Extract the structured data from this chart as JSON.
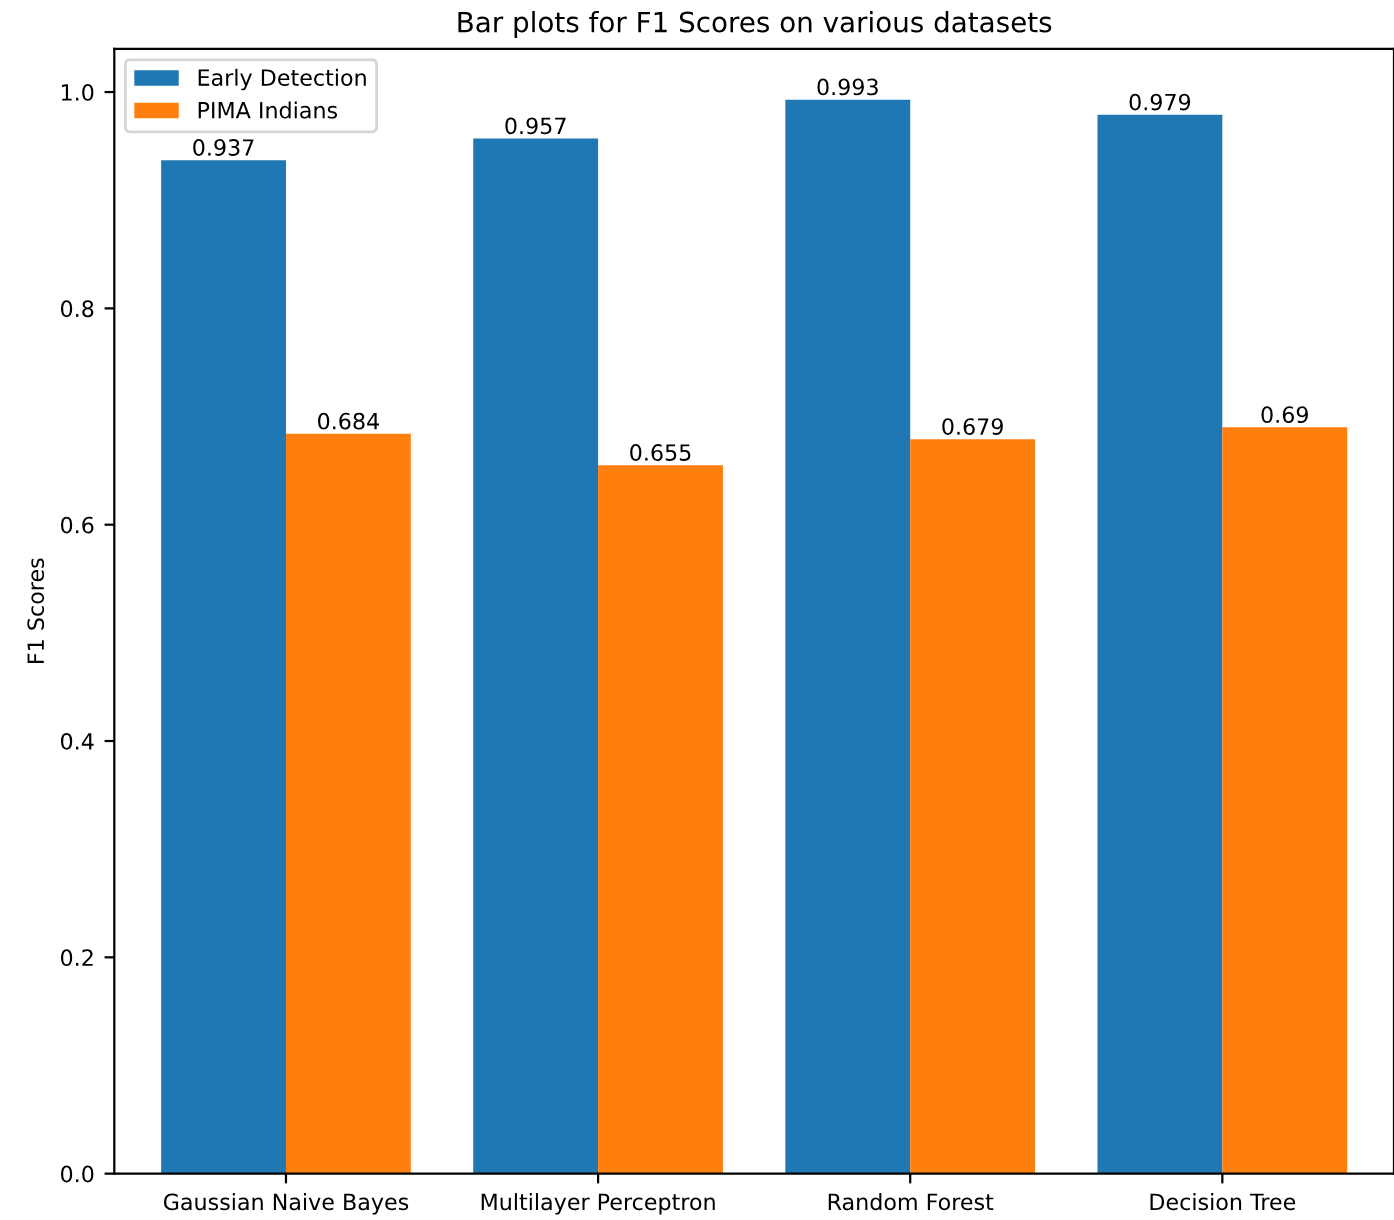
{
  "chart_data": {
    "type": "bar",
    "title": "Bar plots for F1 Scores on various datasets",
    "ylabel": "F1 Scores",
    "categories": [
      "Gaussian Naive Bayes",
      "Multilayer Perceptron",
      "Random Forest",
      "Decision Tree"
    ],
    "series": [
      {
        "name": "Early Detection",
        "color": "#1f77b4",
        "values": [
          0.937,
          0.957,
          0.993,
          0.979
        ]
      },
      {
        "name": "PIMA Indians",
        "color": "#ff7f0e",
        "values": [
          0.684,
          0.655,
          0.679,
          0.69
        ]
      }
    ],
    "ylim": [
      0,
      1.04
    ],
    "yticks": [
      {
        "value": 0,
        "label": "0.0"
      },
      {
        "value": 0.2,
        "label": "0.2"
      },
      {
        "value": 0.4,
        "label": "0.4"
      },
      {
        "value": 0.6,
        "label": "0.6"
      },
      {
        "value": 0.8,
        "label": "0.8"
      },
      {
        "value": 1.0,
        "label": "1.0"
      }
    ],
    "data_labels": true,
    "legend": "top left",
    "grid": false
  }
}
